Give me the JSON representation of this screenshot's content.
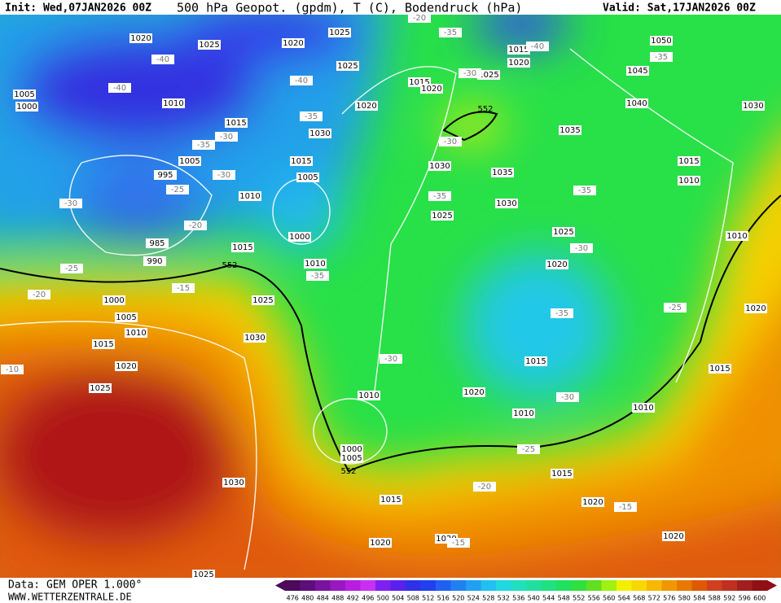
{
  "header": {
    "init": "Init: Wed,07JAN2026 00Z",
    "title": "500 hPa Geopot. (gpdm), T (C), Bodendruck (hPa)",
    "valid": "Valid: Sat,17JAN2026 00Z"
  },
  "footer": {
    "data": "Data: GEM OPER 1.000°",
    "site": "WWW.WETTERZENTRALE.DE"
  },
  "map": {
    "pressure_labels": [
      1020,
      1025,
      1020,
      1025,
      1025,
      1015,
      1020,
      1025,
      1050,
      1045,
      1040,
      1030,
      1005,
      1000,
      1010,
      1015,
      1020,
      1015,
      1020,
      1035,
      1030,
      1005,
      995,
      1015,
      1005,
      1010,
      1030,
      1035,
      1015,
      1010,
      1030,
      1025,
      1000,
      985,
      990,
      1015,
      1010,
      1025,
      1020,
      1010,
      1000,
      1005,
      1010,
      1025,
      1015,
      1030,
      1020,
      1020,
      1015,
      1015,
      1025,
      1010,
      1020,
      1010,
      1010,
      1000,
      1005,
      1015,
      1030,
      1015,
      1020,
      1020,
      1020,
      1020,
      1025
    ],
    "temperature_labels": [
      -40,
      -40,
      -40,
      -40,
      -35,
      -35,
      -30,
      -35,
      -30,
      -35,
      -30,
      -25,
      -30,
      -20,
      -30,
      -35,
      -35,
      -30,
      -25,
      -35,
      -20,
      -15,
      -25,
      -35,
      -30,
      -10,
      -30,
      -25,
      -20,
      -15,
      -15,
      -20
    ],
    "geopotential_labels": [
      552,
      552,
      552
    ]
  },
  "scale": {
    "values": [
      476,
      480,
      484,
      488,
      492,
      496,
      500,
      504,
      508,
      512,
      516,
      520,
      524,
      528,
      532,
      536,
      540,
      544,
      548,
      552,
      556,
      560,
      564,
      568,
      572,
      576,
      580,
      584,
      588,
      592,
      596,
      600
    ],
    "colors": [
      "#4b0a5a",
      "#5e0e7a",
      "#7a12a0",
      "#9a18c0",
      "#b81ee0",
      "#c830f0",
      "#8020f0",
      "#5a20f0",
      "#3030e8",
      "#2040f0",
      "#2060f0",
      "#2080f0",
      "#20a0f0",
      "#20c0f0",
      "#20d8e0",
      "#20e0c0",
      "#20e0a0",
      "#20e080",
      "#20e060",
      "#30e040",
      "#60e020",
      "#a0f010",
      "#f0f000",
      "#f8d800",
      "#f8b800",
      "#f09800",
      "#e87800",
      "#e05800",
      "#d04020",
      "#c03020",
      "#a02020",
      "#901018"
    ]
  }
}
